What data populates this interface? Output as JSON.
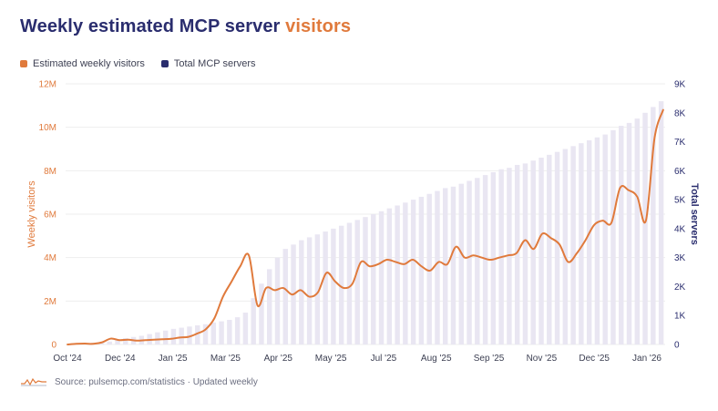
{
  "title": {
    "main": "Weekly estimated MCP server",
    "accent": "visitors"
  },
  "legend": {
    "visitors_label": "Estimated weekly visitors",
    "servers_label": "Total MCP servers"
  },
  "colors": {
    "title": "#2a2d6e",
    "visitors": "#e07a3c",
    "servers_legend": "#2a2d6e",
    "bars": "#e9e6f2",
    "grid": "#eeeeee",
    "left_axis_text": "#e07a3c",
    "right_axis_text": "#2a2d6e"
  },
  "source": {
    "text": "Source: pulsemcp.com/statistics · Updated weekly",
    "icon": "sparkline-icon"
  },
  "chart_data": {
    "type": "bar",
    "x_ticks": [
      "Oct '24",
      "Dec '24",
      "Jan '25",
      "Mar '25",
      "Apr '25",
      "May '25",
      "Jul '25",
      "Aug '25",
      "Sep '25",
      "Nov '25",
      "Dec '25",
      "Jan '26"
    ],
    "y_left": {
      "label": "Weekly visitors",
      "ticks": [
        "0",
        "2M",
        "4M",
        "6M",
        "8M",
        "10M",
        "12M"
      ],
      "range": [
        0,
        12000000
      ]
    },
    "y_right": {
      "label": "Total servers",
      "ticks": [
        "0",
        "1K",
        "2K",
        "3K",
        "4K",
        "5K",
        "6K",
        "7K",
        "8K",
        "9K"
      ],
      "range": [
        0,
        9000
      ]
    },
    "grid": true,
    "series": [
      {
        "name": "Total MCP servers",
        "kind": "bar",
        "axis": "right",
        "values": [
          0,
          0,
          0,
          60,
          80,
          100,
          140,
          220,
          260,
          300,
          360,
          420,
          480,
          540,
          580,
          620,
          660,
          700,
          760,
          800,
          850,
          940,
          1100,
          1600,
          2100,
          2600,
          3000,
          3300,
          3450,
          3600,
          3700,
          3800,
          3900,
          4000,
          4100,
          4200,
          4300,
          4400,
          4500,
          4600,
          4700,
          4800,
          4900,
          5000,
          5100,
          5200,
          5300,
          5400,
          5450,
          5550,
          5650,
          5750,
          5850,
          5950,
          6050,
          6100,
          6200,
          6250,
          6350,
          6450,
          6550,
          6650,
          6750,
          6850,
          6950,
          7050,
          7150,
          7250,
          7400,
          7550,
          7650,
          7800,
          8000,
          8200,
          8400
        ]
      },
      {
        "name": "Estimated weekly visitors",
        "kind": "line",
        "axis": "left",
        "values": [
          0,
          30000,
          40000,
          30000,
          100000,
          270000,
          200000,
          220000,
          180000,
          200000,
          220000,
          240000,
          260000,
          320000,
          350000,
          500000,
          700000,
          1200000,
          2200000,
          2900000,
          3600000,
          4100000,
          1800000,
          2600000,
          2500000,
          2600000,
          2300000,
          2500000,
          2200000,
          2400000,
          3300000,
          2900000,
          2600000,
          2800000,
          3800000,
          3600000,
          3700000,
          3900000,
          3800000,
          3700000,
          3900000,
          3600000,
          3400000,
          3800000,
          3700000,
          4500000,
          4000000,
          4100000,
          4000000,
          3900000,
          4000000,
          4100000,
          4200000,
          4800000,
          4400000,
          5100000,
          4900000,
          4600000,
          3800000,
          4200000,
          4800000,
          5500000,
          5700000,
          5600000,
          7200000,
          7100000,
          6800000,
          5700000,
          9500000,
          10800000
        ]
      }
    ]
  }
}
